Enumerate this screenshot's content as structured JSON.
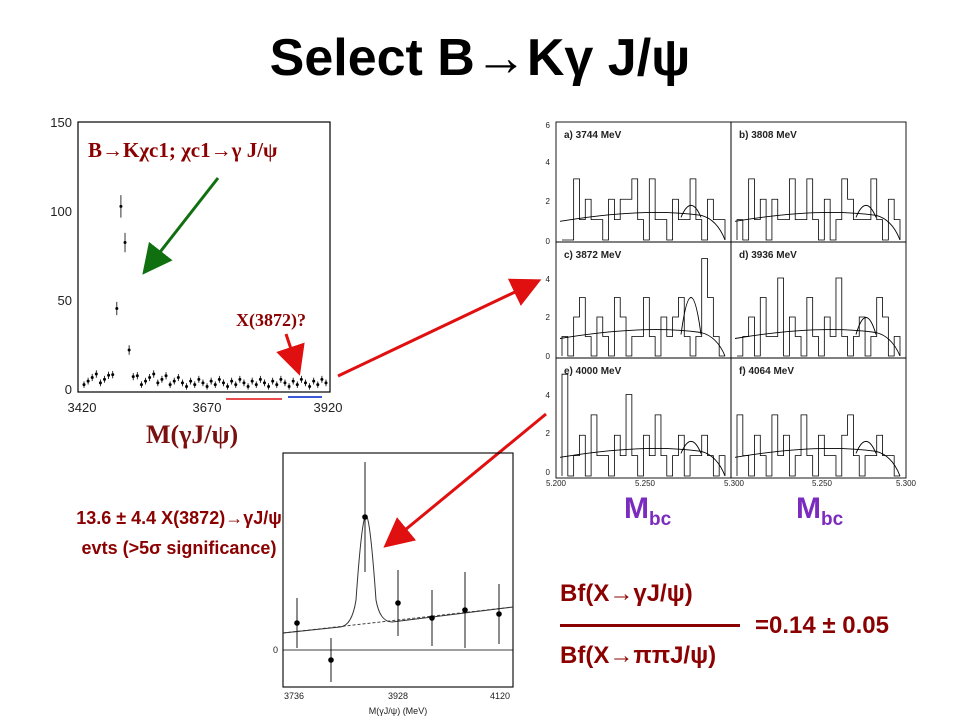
{
  "slide": {
    "title": "Select B→Kγ J/ψ"
  },
  "left_plot": {
    "annotation_green": "B→Kχc1; χc1→γ J/ψ",
    "annotation_x": "X(3872)?",
    "xlabel": "M(γJ/ψ)",
    "y_ticks": [
      "150",
      "100",
      "50",
      "0"
    ],
    "x_ticks": [
      "3420",
      "3670",
      "3920"
    ]
  },
  "mbc_panels": {
    "panels": [
      "a) 3744 MeV",
      "b) 3808 MeV",
      "c) 3872 MeV",
      "d) 3936 MeV",
      "e) 4000 MeV",
      "f) 4064 MeV"
    ],
    "y_ticks": [
      "6",
      "4",
      "2",
      "0"
    ],
    "x_ticks": [
      "5.200",
      "5.250",
      "5.300"
    ],
    "xlabel_left": "M",
    "xlabel_right": "M",
    "xlabel_sub": "bc"
  },
  "bottom_plot": {
    "x_ticks": [
      "3736",
      "3928",
      "4120"
    ],
    "y_tick_zero": "0",
    "xlabel": "M(γJ/ψ) (MeV)"
  },
  "significance": {
    "line1": "13.6 ± 4.4  X(3872)→γJ/ψ",
    "line2": "evts (>5σ significance)"
  },
  "ratio": {
    "numerator": "Bf(X→γJ/ψ)",
    "denominator": "Bf(X→ππJ/ψ)",
    "value": "=0.14 ± 0.05"
  },
  "colors": {
    "arrow_red": "#e01010",
    "arrow_green": "#107010",
    "text_red": "#8b0000",
    "mbc_purple": "#7b2cbf"
  }
}
